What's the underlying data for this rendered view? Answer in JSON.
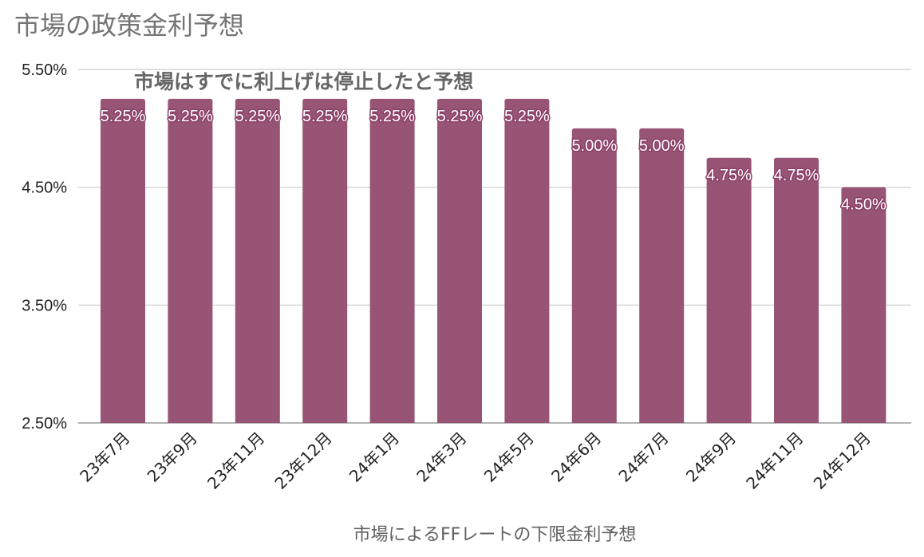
{
  "title": "市場の政策金利予想",
  "annotation": "市場はすでに利上げは停止したと予想",
  "chart_data": {
    "type": "bar",
    "title": "市場の政策金利予想",
    "xlabel": "市場によるFFレートの下限金利予想",
    "ylabel": "",
    "categories": [
      "23年7月",
      "23年9月",
      "23年11月",
      "23年12月",
      "24年1月",
      "24年3月",
      "24年5月",
      "24年6月",
      "24年7月",
      "24年9月",
      "24年11月",
      "24年12月"
    ],
    "values": [
      5.25,
      5.25,
      5.25,
      5.25,
      5.25,
      5.25,
      5.25,
      5.0,
      5.0,
      4.75,
      4.75,
      4.5
    ],
    "value_labels": [
      "5.25%",
      "5.25%",
      "5.25%",
      "5.25%",
      "5.25%",
      "5.25%",
      "5.25%",
      "5.00%",
      "5.00%",
      "4.75%",
      "4.75%",
      "4.50%"
    ],
    "ylim": [
      2.5,
      5.5
    ],
    "yticks": [
      2.5,
      3.5,
      4.5,
      5.5
    ],
    "ytick_labels": [
      "2.50%",
      "3.50%",
      "4.50%",
      "5.50%"
    ],
    "grid": true,
    "bar_color": "#985475",
    "annotations": [
      "市場はすでに利上げは停止したと予想"
    ]
  }
}
